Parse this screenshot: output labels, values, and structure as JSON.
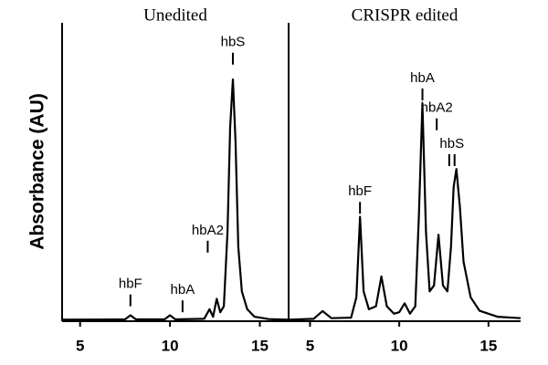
{
  "chart_data": [
    {
      "type": "line",
      "title": "Unedited",
      "y_label": "Absorbance (AU)",
      "color": "#000000",
      "xlim": [
        4.0,
        16.6
      ],
      "xticks": [
        5,
        10,
        15
      ],
      "ylim": [
        0,
        100
      ],
      "x": [
        4,
        7.5,
        7.8,
        8.1,
        9.7,
        10,
        10.3,
        11.9,
        12.2,
        12.4,
        12.6,
        12.8,
        13.0,
        13.2,
        13.35,
        13.5,
        13.65,
        13.8,
        14.0,
        14.3,
        14.7,
        15.5,
        16.6
      ],
      "values": [
        0.5,
        0.6,
        2,
        0.6,
        0.6,
        2,
        0.6,
        0.8,
        4,
        1.5,
        7.5,
        3,
        5,
        30,
        65,
        81,
        60,
        25,
        10,
        4,
        1.5,
        0.7,
        0.5
      ],
      "annotations": [
        {
          "text": "hbF",
          "x": [
            7.8
          ],
          "y": 5
        },
        {
          "text": "hbA",
          "x": [
            10.7
          ],
          "y": 3
        },
        {
          "text": "hbA2",
          "x": [
            12.1
          ],
          "y": 23
        },
        {
          "text": "hbS",
          "x": [
            13.5
          ],
          "y": 86
        }
      ]
    },
    {
      "type": "line",
      "title": "CRISPR edited",
      "color": "#000000",
      "xlim": [
        3.8,
        16.8
      ],
      "xticks": [
        5,
        10,
        15
      ],
      "ylim": [
        0,
        100
      ],
      "x": [
        3.8,
        5.2,
        5.7,
        6.2,
        7.3,
        7.6,
        7.8,
        8.0,
        8.3,
        8.7,
        9.0,
        9.3,
        9.7,
        10.0,
        10.3,
        10.6,
        10.9,
        11.1,
        11.3,
        11.5,
        11.7,
        11.95,
        12.2,
        12.45,
        12.7,
        12.9,
        13.05,
        13.2,
        13.4,
        13.6,
        14.0,
        14.5,
        15.5,
        16.8
      ],
      "values": [
        0.5,
        0.8,
        3.4,
        1,
        1.2,
        8,
        35,
        10,
        4,
        5,
        15,
        5,
        2.5,
        3,
        6,
        2.5,
        5,
        35,
        73,
        30,
        10,
        12,
        29,
        12,
        10,
        25,
        45,
        51,
        38,
        20,
        8,
        3.5,
        1.5,
        1
      ],
      "annotations": [
        {
          "text": "hbF",
          "x": [
            7.8
          ],
          "y": 36
        },
        {
          "text": "hbA",
          "x": [
            11.3
          ],
          "y": 74
        },
        {
          "text": "hbA2",
          "x": [
            12.1
          ],
          "y": 64
        },
        {
          "text": "hbS",
          "x": [
            12.8,
            13.1
          ],
          "y": 52
        }
      ]
    }
  ]
}
